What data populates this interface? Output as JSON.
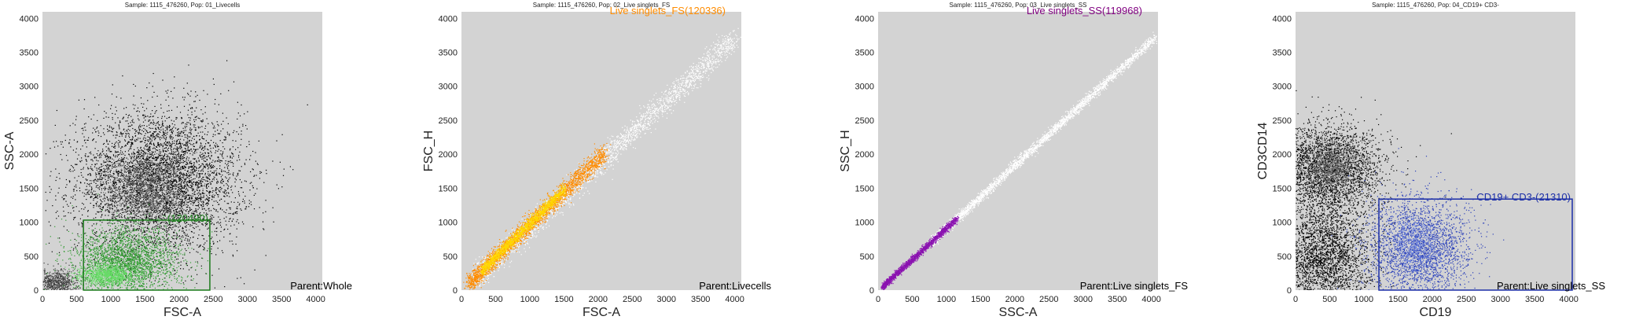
{
  "chart_data": [
    {
      "type": "scatter",
      "title": "Sample: 1115_476260, Pop: 01_Livecells",
      "xlabel": "FSC-A",
      "ylabel": "SSC-A",
      "xlim": [
        0,
        4096
      ],
      "ylim": [
        0,
        4096
      ],
      "xticks": [
        "0",
        "500",
        "1000",
        "1500",
        "2000",
        "2500",
        "3000",
        "3500",
        "4000"
      ],
      "yticks": [
        "0",
        "500",
        "1000",
        "1500",
        "2000",
        "2500",
        "3000",
        "3500",
        "4000"
      ],
      "background": "#d3d3d3",
      "gate": {
        "shape": "rectangle",
        "x": [
          600,
          2450
        ],
        "y": [
          0,
          1030
        ],
        "color": "#1a7a1a",
        "label": "(120490)",
        "label_color": "#1a7a1a"
      },
      "parent_label": "Parent:Whole",
      "populations": [
        {
          "name": "all events",
          "color": "#000000",
          "cx": 1700,
          "cy": 1600,
          "sx": 600,
          "sy": 520,
          "n": 5000
        },
        {
          "name": "all events dense core",
          "color": "#606060",
          "cx": 1550,
          "cy": 1500,
          "sx": 300,
          "sy": 250,
          "n": 1400
        },
        {
          "name": "low debris",
          "color": "#404040",
          "cx": 200,
          "cy": 120,
          "sx": 150,
          "sy": 90,
          "n": 700
        },
        {
          "name": "gated",
          "color": "#2f9a2f",
          "cx": 1250,
          "cy": 420,
          "sx": 380,
          "sy": 260,
          "n": 2600
        },
        {
          "name": "gated dense",
          "color": "#66dd66",
          "cx": 950,
          "cy": 230,
          "sx": 200,
          "sy": 80,
          "n": 900
        }
      ]
    },
    {
      "type": "scatter",
      "title": "Sample: 1115_476260, Pop: 02_Live singlets_FS",
      "xlabel": "FSC-A",
      "ylabel": "FSC_H",
      "xlim": [
        0,
        4096
      ],
      "ylim": [
        0,
        4096
      ],
      "xticks": [
        "0",
        "500",
        "1000",
        "1500",
        "2000",
        "2500",
        "3000",
        "3500",
        "4000"
      ],
      "yticks": [
        "0",
        "500",
        "1000",
        "1500",
        "2000",
        "2500",
        "3000",
        "3500",
        "4000"
      ],
      "background": "#d3d3d3",
      "gate_label": "Live singlets_FS(120336)",
      "gate_label_color": "#ff8c00",
      "parent_label": "Parent:Livecells",
      "populations": [
        {
          "name": "ungated diagonal",
          "color": "#ffffff",
          "diag": true,
          "t0": 200,
          "t1": 4000,
          "slope": 0.93,
          "spread": 90,
          "n": 2600
        },
        {
          "name": "gated",
          "color": "#ff8c00",
          "diag": true,
          "t0": 100,
          "t1": 2100,
          "slope": 0.97,
          "spread": 70,
          "n": 2600
        },
        {
          "name": "gated dense",
          "color": "#ffd700",
          "diag": true,
          "t0": 300,
          "t1": 1500,
          "slope": 0.99,
          "spread": 40,
          "n": 1500
        }
      ]
    },
    {
      "type": "scatter",
      "title": "Sample: 1115_476260, Pop: 03_Live singlets_SS",
      "xlabel": "SSC-A",
      "ylabel": "SSC_H",
      "xlim": [
        0,
        4096
      ],
      "ylim": [
        0,
        4096
      ],
      "xticks": [
        "0",
        "500",
        "1000",
        "1500",
        "2000",
        "2500",
        "3000",
        "3500",
        "4000"
      ],
      "yticks": [
        "0",
        "500",
        "1000",
        "1500",
        "2000",
        "2500",
        "3000",
        "3500",
        "4000"
      ],
      "background": "#d3d3d3",
      "gate_label": "Live singlets_SS(119968)",
      "gate_label_color": "#800080",
      "parent_label": "Parent:Live singlets_FS",
      "populations": [
        {
          "name": "ungated diagonal",
          "color": "#ffffff",
          "diag": true,
          "t0": 800,
          "t1": 4050,
          "slope": 0.92,
          "spread": 35,
          "n": 2800
        },
        {
          "name": "gated",
          "color": "#8a12b0",
          "diag": true,
          "t0": 60,
          "t1": 1150,
          "slope": 0.92,
          "spread": 25,
          "n": 1800
        }
      ]
    },
    {
      "type": "scatter",
      "title": "Sample: 1115_476260, Pop: 04_CD19+ CD3-",
      "xlabel": "CD19",
      "ylabel": "CD3CD14",
      "xlim": [
        0,
        4096
      ],
      "ylim": [
        0,
        4096
      ],
      "xticks": [
        "0",
        "500",
        "1000",
        "1500",
        "2000",
        "2500",
        "3000",
        "3500",
        "4000"
      ],
      "yticks": [
        "0",
        "500",
        "1000",
        "1500",
        "2000",
        "2500",
        "3000",
        "3500",
        "4000"
      ],
      "background": "#d3d3d3",
      "gate": {
        "shape": "rectangle",
        "x": [
          1220,
          4050
        ],
        "y": [
          0,
          1340
        ],
        "color": "#1c2fa8",
        "label": "CD19+ CD3-(21310)",
        "label_color": "#1c2fa8"
      },
      "parent_label": "Parent:Live singlets_SS",
      "populations": [
        {
          "name": "CD3+ cluster",
          "color": "#000000",
          "cx": 450,
          "cy": 1800,
          "sx": 420,
          "sy": 330,
          "n": 3200
        },
        {
          "name": "CD3+ core",
          "color": "#707070",
          "cx": 500,
          "cy": 1820,
          "sx": 200,
          "sy": 170,
          "n": 900
        },
        {
          "name": "negative cluster",
          "color": "#000000",
          "cx": 400,
          "cy": 500,
          "sx": 360,
          "sy": 400,
          "n": 3000
        },
        {
          "name": "CD19+ CD3-",
          "color": "#2a3fb8",
          "cx": 1800,
          "cy": 600,
          "sx": 380,
          "sy": 380,
          "n": 2600
        },
        {
          "name": "CD19+ CD3- core",
          "color": "#6f86e0",
          "cx": 1750,
          "cy": 650,
          "sx": 200,
          "sy": 220,
          "n": 600
        }
      ]
    }
  ]
}
